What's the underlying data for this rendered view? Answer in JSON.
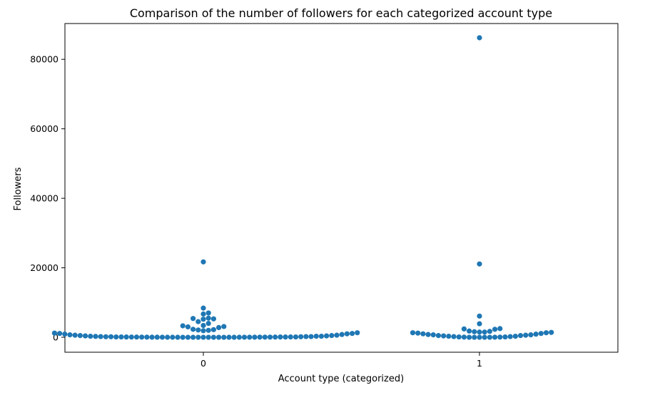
{
  "chart_data": {
    "type": "scatter",
    "subtype": "swarm",
    "title": "Comparison of the number of followers for each categorized account type",
    "xlabel": "Account type (categorized)",
    "ylabel": "Followers",
    "categories": [
      "0",
      "1"
    ],
    "y_ticks": [
      0,
      20000,
      40000,
      60000,
      80000
    ],
    "ylim": [
      -4300,
      90300
    ],
    "grid": false,
    "legend": "none",
    "marker_color": "#1f77b4",
    "series": [
      {
        "category": "0",
        "values": [
          21700,
          8400,
          7000,
          6700,
          5500,
          5400,
          5300,
          5200,
          4500,
          4000,
          3400,
          3300,
          3100,
          3000,
          2800,
          2300,
          2200,
          2100,
          2000,
          1900,
          1300,
          1200,
          1100,
          1100,
          1000,
          900,
          800,
          700,
          600,
          600,
          500,
          500,
          400,
          400,
          300,
          300,
          300,
          250,
          200,
          200,
          200,
          150,
          150,
          150,
          100,
          100,
          100,
          100,
          80,
          80,
          80,
          60,
          60,
          60,
          50,
          50,
          40,
          40,
          40,
          30,
          30,
          30,
          20,
          20,
          20,
          10,
          10,
          10,
          5,
          5,
          5,
          0,
          0,
          0,
          0,
          0,
          0,
          0,
          0,
          0
        ]
      },
      {
        "category": "1",
        "values": [
          86200,
          21100,
          6100,
          3900,
          2500,
          2400,
          2300,
          1800,
          1700,
          1600,
          1500,
          1500,
          1400,
          1300,
          1300,
          1200,
          1100,
          1000,
          900,
          800,
          700,
          700,
          600,
          500,
          500,
          400,
          300,
          300,
          200,
          200,
          100,
          100,
          50,
          50,
          20,
          0,
          0,
          0,
          0,
          0
        ]
      }
    ]
  }
}
